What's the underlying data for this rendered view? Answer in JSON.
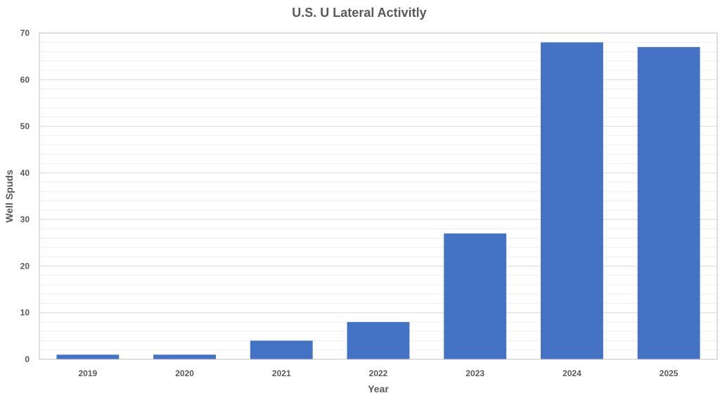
{
  "chart_data": {
    "type": "bar",
    "title": "U.S. U Lateral Activitly",
    "xlabel": "Year",
    "ylabel": "Well Spuds",
    "categories": [
      "2019",
      "2020",
      "2021",
      "2022",
      "2023",
      "2024",
      "2025"
    ],
    "values": [
      1,
      1,
      4,
      8,
      27,
      68,
      67
    ],
    "ylim": [
      0,
      70
    ],
    "yticks": [
      0,
      10,
      20,
      30,
      40,
      50,
      60,
      70
    ],
    "minor_grid_step": 2,
    "grid": true,
    "legend": "none",
    "bar_color": "#4472C4"
  }
}
